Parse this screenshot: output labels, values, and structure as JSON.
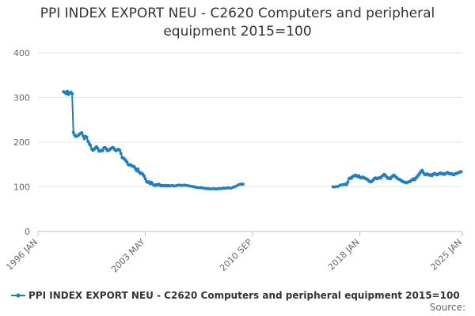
{
  "chart_data": {
    "type": "line",
    "title_line1": "PPI INDEX EXPORT NEU - C2620 Computers and peripheral",
    "title_line2": "equipment 2015=100",
    "xlabel": "",
    "ylabel": "",
    "ylim": [
      0,
      400
    ],
    "yticks": [
      0,
      100,
      200,
      300,
      400
    ],
    "xlim": [
      "1996-01",
      "2025-01"
    ],
    "xticks": [
      "1996-01",
      "2003-05",
      "2010-09",
      "2018-01",
      "2025-01"
    ],
    "xtick_labels": [
      "1996 JAN",
      "2003 MAY",
      "2010 SEP",
      "2018 JAN",
      "2025 JAN"
    ],
    "grid": "horizontal",
    "legend_position": "bottom-left",
    "series": [
      {
        "name": "PPI INDEX EXPORT NEU - C2620 Computers and peripheral equipment 2015=100",
        "color": "#1f7fbf",
        "segments": [
          [
            [
              "1997-10",
              313
            ],
            [
              "1997-11",
              312
            ],
            [
              "1997-12",
              309
            ],
            [
              "1998-01",
              314
            ],
            [
              "1998-02",
              307
            ],
            [
              "1998-03",
              310
            ],
            [
              "1998-04",
              312
            ],
            [
              "1998-05",
              309
            ],
            [
              "1998-06",
              222
            ],
            [
              "1998-07",
              216
            ],
            [
              "1998-08",
              213
            ],
            [
              "1998-09",
              214
            ],
            [
              "1998-10",
              215
            ],
            [
              "1998-11",
              218
            ],
            [
              "1998-12",
              220
            ],
            [
              "1999-01",
              221
            ],
            [
              "1999-02",
              214
            ],
            [
              "1999-03",
              208
            ],
            [
              "1999-04",
              213
            ],
            [
              "1999-05",
              211
            ],
            [
              "1999-06",
              202
            ],
            [
              "1999-07",
              197
            ],
            [
              "1999-08",
              193
            ],
            [
              "1999-09",
              185
            ],
            [
              "1999-10",
              182
            ],
            [
              "1999-11",
              184
            ],
            [
              "1999-12",
              187
            ],
            [
              "2000-01",
              190
            ],
            [
              "2000-02",
              186
            ],
            [
              "2000-03",
              180
            ],
            [
              "2000-04",
              180
            ],
            [
              "2000-05",
              182
            ],
            [
              "2000-06",
              181
            ],
            [
              "2000-07",
              187
            ],
            [
              "2000-08",
              188
            ],
            [
              "2000-09",
              185
            ],
            [
              "2000-10",
              181
            ],
            [
              "2000-11",
              182
            ],
            [
              "2000-12",
              184
            ],
            [
              "2001-01",
              186
            ],
            [
              "2001-02",
              188
            ],
            [
              "2001-03",
              187
            ],
            [
              "2001-04",
              183
            ],
            [
              "2001-05",
              181
            ],
            [
              "2001-06",
              183
            ],
            [
              "2001-07",
              184
            ],
            [
              "2001-08",
              182
            ],
            [
              "2001-09",
              175
            ],
            [
              "2001-10",
              166
            ],
            [
              "2001-11",
              164
            ],
            [
              "2001-12",
              162
            ],
            [
              "2002-01",
              159
            ],
            [
              "2002-02",
              155
            ],
            [
              "2002-03",
              150
            ],
            [
              "2002-04",
              149
            ],
            [
              "2002-05",
              149
            ],
            [
              "2002-06",
              147
            ],
            [
              "2002-07",
              146
            ],
            [
              "2002-08",
              145
            ],
            [
              "2002-09",
              140
            ],
            [
              "2002-10",
              136
            ],
            [
              "2002-11",
              140
            ],
            [
              "2002-12",
              133
            ],
            [
              "2003-01",
              130
            ],
            [
              "2003-02",
              131
            ],
            [
              "2003-03",
              128
            ],
            [
              "2003-04",
              124
            ],
            [
              "2003-05",
              118
            ],
            [
              "2003-06",
              112
            ],
            [
              "2003-07",
              110
            ],
            [
              "2003-08",
              111
            ],
            [
              "2003-09",
              107
            ],
            [
              "2003-10",
              110
            ],
            [
              "2003-11",
              106
            ],
            [
              "2003-12",
              104
            ],
            [
              "2004-01",
              103
            ],
            [
              "2004-02",
              105
            ],
            [
              "2004-03",
              104
            ],
            [
              "2004-04",
              106
            ],
            [
              "2004-05",
              104
            ],
            [
              "2004-06",
              102
            ],
            [
              "2004-07",
              103
            ],
            [
              "2004-08",
              103
            ],
            [
              "2004-09",
              102
            ],
            [
              "2004-10",
              103
            ],
            [
              "2004-11",
              102
            ],
            [
              "2004-12",
              103
            ],
            [
              "2005-01",
              102
            ],
            [
              "2005-03",
              103
            ],
            [
              "2005-05",
              102
            ],
            [
              "2005-07",
              103
            ],
            [
              "2005-09",
              104
            ],
            [
              "2005-11",
              103
            ],
            [
              "2006-01",
              104
            ],
            [
              "2006-03",
              103
            ],
            [
              "2006-05",
              102
            ],
            [
              "2006-07",
              101
            ],
            [
              "2006-09",
              100
            ],
            [
              "2006-11",
              99
            ],
            [
              "2007-01",
              98
            ],
            [
              "2007-03",
              98
            ],
            [
              "2007-05",
              97
            ],
            [
              "2007-07",
              96
            ],
            [
              "2007-09",
              96
            ],
            [
              "2007-11",
              95
            ],
            [
              "2008-01",
              96
            ],
            [
              "2008-03",
              95
            ],
            [
              "2008-05",
              96
            ],
            [
              "2008-07",
              96
            ],
            [
              "2008-09",
              97
            ],
            [
              "2008-11",
              97
            ],
            [
              "2009-01",
              98
            ],
            [
              "2009-03",
              97
            ],
            [
              "2009-05",
              99
            ],
            [
              "2009-07",
              101
            ],
            [
              "2009-09",
              104
            ],
            [
              "2009-11",
              106
            ],
            [
              "2010-01",
              106
            ]
          ],
          [
            [
              "2016-03",
              100
            ],
            [
              "2016-05",
              100
            ],
            [
              "2016-07",
              101
            ],
            [
              "2016-09",
              104
            ],
            [
              "2016-11",
              105
            ],
            [
              "2017-01",
              106
            ],
            [
              "2017-02",
              105
            ],
            [
              "2017-03",
              110
            ],
            [
              "2017-04",
              118
            ],
            [
              "2017-05",
              120
            ],
            [
              "2017-06",
              119
            ],
            [
              "2017-07",
              123
            ],
            [
              "2017-08",
              124
            ],
            [
              "2017-09",
              126
            ],
            [
              "2017-10",
              125
            ],
            [
              "2017-11",
              123
            ],
            [
              "2017-12",
              125
            ],
            [
              "2018-01",
              121
            ],
            [
              "2018-02",
              120
            ],
            [
              "2018-03",
              122
            ],
            [
              "2018-04",
              121
            ],
            [
              "2018-05",
              119
            ],
            [
              "2018-06",
              118
            ],
            [
              "2018-07",
              117
            ],
            [
              "2018-08",
              114
            ],
            [
              "2018-09",
              112
            ],
            [
              "2018-10",
              111
            ],
            [
              "2018-11",
              113
            ],
            [
              "2018-12",
              116
            ],
            [
              "2019-01",
              119
            ],
            [
              "2019-02",
              120
            ],
            [
              "2019-03",
              118
            ],
            [
              "2019-04",
              119
            ],
            [
              "2019-05",
              121
            ],
            [
              "2019-06",
              120
            ],
            [
              "2019-07",
              123
            ],
            [
              "2019-08",
              126
            ],
            [
              "2019-09",
              128
            ],
            [
              "2019-10",
              125
            ],
            [
              "2019-11",
              122
            ],
            [
              "2019-12",
              119
            ],
            [
              "2020-01",
              120
            ],
            [
              "2020-02",
              118
            ],
            [
              "2020-03",
              122
            ],
            [
              "2020-04",
              125
            ],
            [
              "2020-05",
              126
            ],
            [
              "2020-06",
              123
            ],
            [
              "2020-07",
              121
            ],
            [
              "2020-08",
              118
            ],
            [
              "2020-09",
              117
            ],
            [
              "2020-10",
              116
            ],
            [
              "2020-11",
              114
            ],
            [
              "2020-12",
              112
            ],
            [
              "2021-01",
              111
            ],
            [
              "2021-02",
              110
            ],
            [
              "2021-03",
              109
            ],
            [
              "2021-04",
              110
            ],
            [
              "2021-05",
              111
            ],
            [
              "2021-06",
              112
            ],
            [
              "2021-07",
              114
            ],
            [
              "2021-08",
              116
            ],
            [
              "2021-09",
              118
            ],
            [
              "2021-10",
              116
            ],
            [
              "2021-11",
              120
            ],
            [
              "2021-12",
              123
            ],
            [
              "2022-01",
              126
            ],
            [
              "2022-02",
              130
            ],
            [
              "2022-03",
              134
            ],
            [
              "2022-04",
              137
            ],
            [
              "2022-05",
              132
            ],
            [
              "2022-06",
              128
            ],
            [
              "2022-07",
              127
            ],
            [
              "2022-08",
              129
            ],
            [
              "2022-09",
              128
            ],
            [
              "2022-10",
              126
            ],
            [
              "2022-11",
              127
            ],
            [
              "2022-12",
              125
            ],
            [
              "2023-01",
              128
            ],
            [
              "2023-02",
              130
            ],
            [
              "2023-03",
              129
            ],
            [
              "2023-04",
              127
            ],
            [
              "2023-05",
              128
            ],
            [
              "2023-06",
              130
            ],
            [
              "2023-07",
              131
            ],
            [
              "2023-08",
              129
            ],
            [
              "2023-09",
              130
            ],
            [
              "2023-10",
              128
            ],
            [
              "2023-11",
              129
            ],
            [
              "2023-12",
              131
            ],
            [
              "2024-01",
              132
            ],
            [
              "2024-02",
              130
            ],
            [
              "2024-03",
              129
            ],
            [
              "2024-04",
              130
            ],
            [
              "2024-05",
              128
            ],
            [
              "2024-06",
              127
            ],
            [
              "2024-07",
              129
            ],
            [
              "2024-08",
              130
            ],
            [
              "2024-09",
              131
            ],
            [
              "2024-10",
              132
            ],
            [
              "2024-11",
              133
            ],
            [
              "2024-12",
              134
            ]
          ]
        ]
      }
    ]
  },
  "legend": {
    "label": "PPI INDEX EXPORT NEU - C2620 Computers and peripheral equipment 2015=100"
  },
  "source_label": "Source:"
}
